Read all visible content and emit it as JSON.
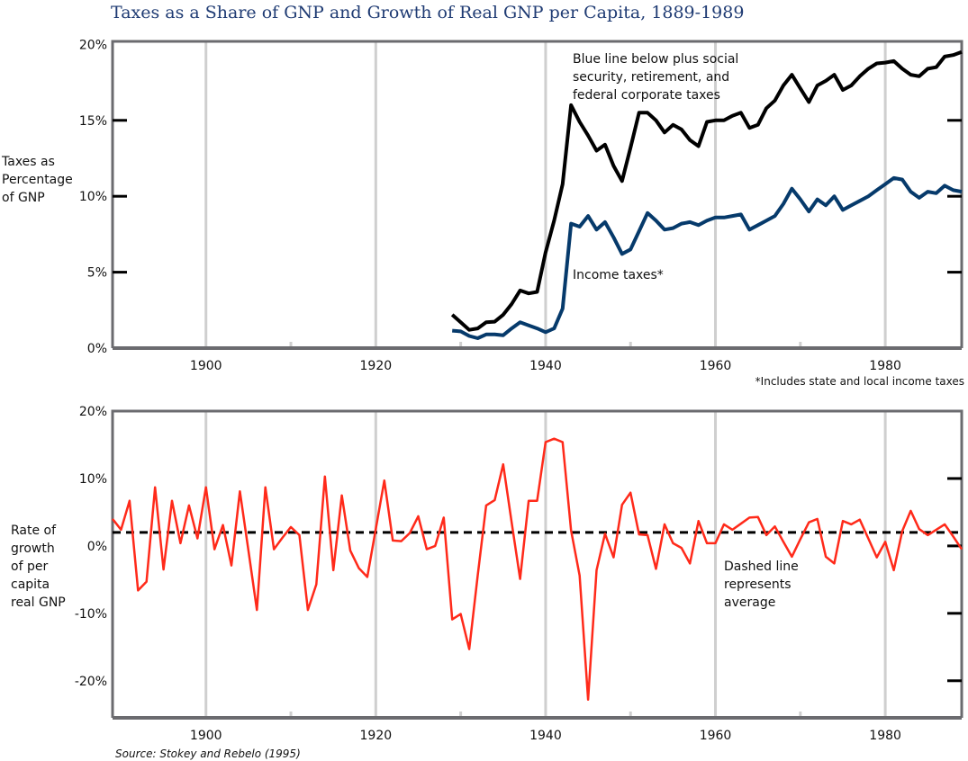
{
  "colors": {
    "total": "#000000",
    "income": "#063a6b",
    "growth": "#ff2a1a",
    "grid": "#cfcfcf",
    "title": "#1f3b73"
  },
  "chart_data": [
    {
      "type": "line",
      "title": "Taxes as a Share of GNP and Growth of Real GNP per Capita, 1889-1989",
      "ylabel": [
        "Taxes as",
        "Percentage",
        "of GNP"
      ],
      "xlim": [
        1889,
        1989
      ],
      "ylim": [
        0,
        20.2
      ],
      "xticks": [
        1900,
        1920,
        1940,
        1960,
        1980
      ],
      "xtick_labels": [
        "1900",
        "1920",
        "1940",
        "1960",
        "1980"
      ],
      "yticks": [
        0,
        5,
        10,
        15,
        20
      ],
      "ytick_labels": [
        "0%",
        "5%",
        "10%",
        "15%",
        "20%"
      ],
      "annotations": {
        "total": [
          "Blue line below plus social",
          "security, retirement, and",
          "federal corporate taxes"
        ],
        "income": "Income taxes*"
      },
      "footnote": "*Includes state and local income taxes",
      "x": [
        1929,
        1930,
        1931,
        1932,
        1933,
        1934,
        1935,
        1936,
        1937,
        1938,
        1939,
        1940,
        1941,
        1942,
        1943,
        1944,
        1945,
        1946,
        1947,
        1948,
        1949,
        1950,
        1951,
        1952,
        1953,
        1954,
        1955,
        1956,
        1957,
        1958,
        1959,
        1960,
        1961,
        1962,
        1963,
        1964,
        1965,
        1966,
        1967,
        1968,
        1969,
        1970,
        1971,
        1972,
        1973,
        1974,
        1975,
        1976,
        1977,
        1978,
        1979,
        1980,
        1981,
        1982,
        1983,
        1984,
        1985,
        1986,
        1987,
        1988,
        1989
      ],
      "series": [
        {
          "name": "Total taxes (income plus social security, retirement, and federal corporate taxes)",
          "color_key": "total",
          "values": [
            2.2,
            1.7,
            1.2,
            1.3,
            1.7,
            1.74,
            2.2,
            2.9,
            3.8,
            3.6,
            3.7,
            6.3,
            8.4,
            10.8,
            16.0,
            14.9,
            14.0,
            13.0,
            13.4,
            12.0,
            11.0,
            13.2,
            15.5,
            15.5,
            15.0,
            14.2,
            14.7,
            14.4,
            13.7,
            13.3,
            14.9,
            15.0,
            15.0,
            15.3,
            15.5,
            14.5,
            14.7,
            15.8,
            16.3,
            17.3,
            18.0,
            17.1,
            16.2,
            17.3,
            17.6,
            18.0,
            17.0,
            17.3,
            17.9,
            18.4,
            18.75,
            18.8,
            18.9,
            18.4,
            18.0,
            17.9,
            18.4,
            18.5,
            19.2,
            19.3,
            19.5
          ]
        },
        {
          "name": "Income taxes",
          "color_key": "income",
          "values": [
            1.15,
            1.1,
            0.8,
            0.65,
            0.9,
            0.9,
            0.85,
            1.3,
            1.7,
            1.5,
            1.3,
            1.05,
            1.3,
            2.6,
            8.2,
            8.0,
            8.7,
            7.8,
            8.3,
            7.3,
            6.2,
            6.5,
            7.7,
            8.9,
            8.4,
            7.8,
            7.9,
            8.2,
            8.3,
            8.1,
            8.4,
            8.6,
            8.6,
            8.7,
            8.8,
            7.8,
            8.1,
            8.4,
            8.7,
            9.5,
            10.5,
            9.8,
            9.0,
            9.8,
            9.4,
            10.0,
            9.1,
            9.4,
            9.7,
            10.0,
            10.4,
            10.8,
            11.2,
            11.1,
            10.3,
            9.9,
            10.3,
            10.2,
            10.7,
            10.4,
            10.3
          ]
        }
      ]
    },
    {
      "type": "line",
      "ylabel": [
        "Rate of",
        "growth",
        "of per",
        "capita",
        "real GNP"
      ],
      "xlim": [
        1889,
        1989
      ],
      "ylim": [
        -25.5,
        20
      ],
      "xticks": [
        1900,
        1920,
        1940,
        1960,
        1980
      ],
      "xtick_labels": [
        "1900",
        "1920",
        "1940",
        "1960",
        "1980"
      ],
      "yticks": [
        20,
        10,
        0,
        -10,
        -20
      ],
      "ytick_labels": [
        "20%",
        "10%",
        "0%",
        "-10%",
        "-20%"
      ],
      "average": 2.0,
      "annotation": [
        "Dashed line",
        "represents",
        "average"
      ],
      "x_start": 1889,
      "series": [
        {
          "name": "Growth of real GNP per capita",
          "color_key": "growth",
          "values": [
            4.0,
            2.4,
            6.7,
            -6.6,
            -5.3,
            8.7,
            -3.5,
            6.7,
            0.4,
            6.0,
            1.1,
            8.7,
            -0.5,
            3.1,
            -2.9,
            8.1,
            -0.7,
            -9.5,
            8.7,
            -0.5,
            1.2,
            2.8,
            1.6,
            -9.5,
            -5.7,
            10.3,
            -3.6,
            7.5,
            -0.7,
            -3.3,
            -4.6,
            2.5,
            9.7,
            0.8,
            0.7,
            1.9,
            4.4,
            -0.5,
            0.0,
            4.2,
            -10.9,
            -10.1,
            -15.3,
            -4.4,
            6.0,
            6.8,
            12.1,
            3.5,
            -4.9,
            6.7,
            6.7,
            15.4,
            15.9,
            15.4,
            2.3,
            -4.4,
            -22.8,
            -3.6,
            1.8,
            -1.7,
            6.1,
            7.9,
            1.7,
            1.6,
            -3.4,
            3.2,
            0.4,
            -0.3,
            -2.6,
            3.7,
            0.4,
            0.4,
            3.2,
            2.4,
            3.3,
            4.2,
            4.3,
            1.6,
            2.9,
            0.6,
            -1.6,
            1.0,
            3.5,
            4.0,
            -1.6,
            -2.6,
            3.7,
            3.2,
            3.9,
            1.1,
            -1.7,
            0.6,
            -3.6,
            2.2,
            5.2,
            2.5,
            1.6,
            2.4,
            3.2,
            1.4,
            -0.5
          ]
        }
      ],
      "source": "Source: Stokey and Rebelo (1995)"
    }
  ]
}
